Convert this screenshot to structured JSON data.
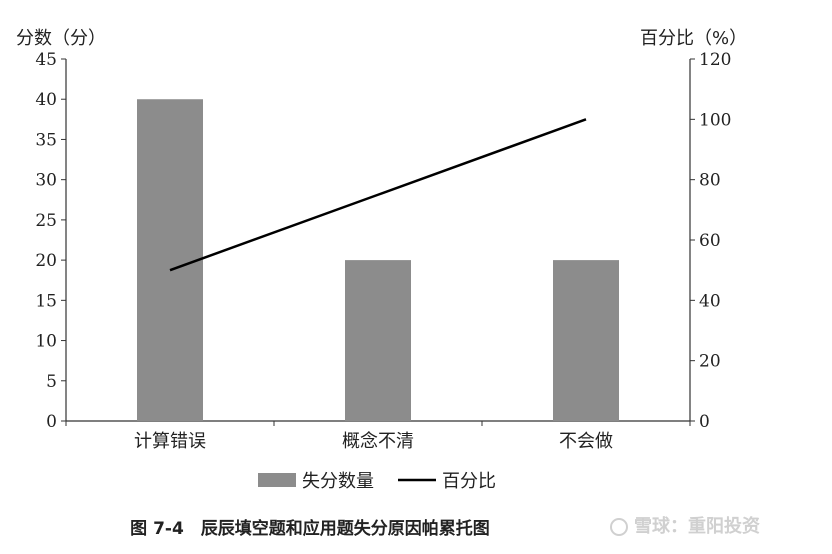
{
  "chart_data": {
    "type": "bar",
    "categories": [
      "计算错误",
      "概念不清",
      "不会做"
    ],
    "series": [
      {
        "name": "失分数量",
        "type": "bar",
        "axis": "left",
        "values": [
          40,
          20,
          20
        ],
        "color": "#8c8c8c"
      },
      {
        "name": "百分比",
        "type": "line",
        "axis": "right",
        "values": [
          50,
          75,
          100
        ],
        "color": "#000000"
      }
    ],
    "ylabel_left": "分数（分）",
    "ylabel_right": "百分比（%）",
    "ylim_left": [
      0,
      45
    ],
    "ylim_right": [
      0,
      120
    ],
    "yticks_left": [
      0,
      5,
      10,
      15,
      20,
      25,
      30,
      35,
      40,
      45
    ],
    "yticks_right": [
      0,
      20,
      40,
      60,
      80,
      100,
      120
    ],
    "grid": false,
    "legend": {
      "position": "bottom",
      "items": [
        "失分数量",
        "百分比"
      ]
    }
  },
  "caption": "图 7-4　辰辰填空题和应用题失分原因帕累托图",
  "watermark": "雪球：重阳投资"
}
